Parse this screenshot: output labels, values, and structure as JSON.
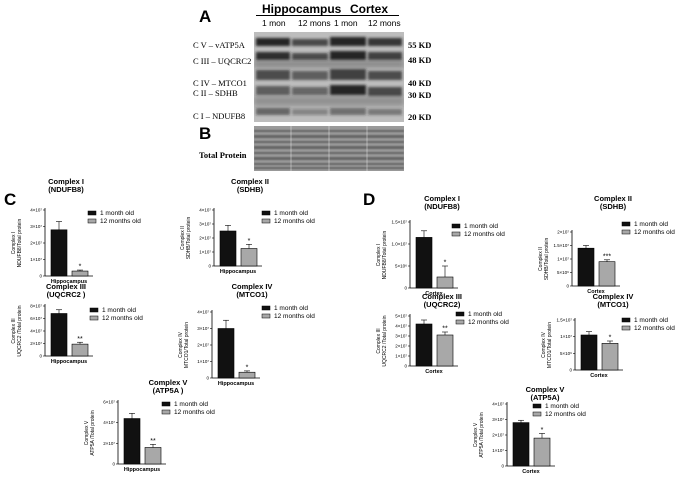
{
  "panels": {
    "A": "A",
    "B": "B",
    "C": "C",
    "D": "D"
  },
  "blot": {
    "groups": [
      "Hippocampus",
      "Cortex"
    ],
    "ages": [
      "1 mon",
      "12 mons",
      "1 mon",
      "12 mons"
    ],
    "bands": [
      {
        "label": "C V – vATP5A",
        "kd": "55 KD"
      },
      {
        "label": "C III – UQCRC2",
        "kd": "48 KD"
      },
      {
        "label": "C IV – MTCO1",
        "kd": "40 KD"
      },
      {
        "label": "C II – SDHB",
        "kd": "30 KD"
      },
      {
        "label": "C I – NDUFB8",
        "kd": "20 KD"
      }
    ],
    "total_protein_label": "Total Protein"
  },
  "legend": {
    "a": "1 month old",
    "b": "12 months old"
  },
  "colors": {
    "bar_1mon": "#111111",
    "bar_12mon": "#a8a8a8"
  },
  "chart_data": [
    {
      "type": "bar",
      "id": "c1",
      "title": [
        "Complex I",
        "(NDUFB8)"
      ],
      "ylabel": [
        "Complex I",
        "NDUFB8/Total protein"
      ],
      "xlabel": "Hippocampus",
      "ylim": [
        0,
        40000000
      ],
      "ticks": [
        "0",
        "1×10⁷",
        "2×10⁷",
        "3×10⁷",
        "4×10⁷"
      ],
      "tick_values": [
        0,
        10000000,
        20000000,
        30000000,
        40000000
      ],
      "series": [
        {
          "name": "1 month old",
          "value": 28000000,
          "err": 5000000
        },
        {
          "name": "12 months old",
          "value": 3000000,
          "err": 600000
        }
      ],
      "sig": "*"
    },
    {
      "type": "bar",
      "id": "c2",
      "title": [
        "Complex II",
        "(SDHB)"
      ],
      "ylabel": [
        "Complex II",
        "SDHB/Total protein"
      ],
      "xlabel": "Hippocampus",
      "ylim": [
        0,
        40000000
      ],
      "ticks": [
        "0",
        "1×10⁷",
        "2×10⁷",
        "3×10⁷",
        "4×10⁷"
      ],
      "tick_values": [
        0,
        10000000,
        20000000,
        30000000,
        40000000
      ],
      "series": [
        {
          "name": "1 month old",
          "value": 25000000,
          "err": 4000000
        },
        {
          "name": "12 months old",
          "value": 12500000,
          "err": 3000000
        }
      ],
      "sig": "*"
    },
    {
      "type": "bar",
      "id": "c3",
      "title": [
        "Complex III",
        "(UQCRC2 )"
      ],
      "ylabel": [
        "Complex III",
        "UQCRC2 /Total protein"
      ],
      "xlabel": "Hippocampus",
      "ylim": [
        0,
        80000000
      ],
      "ticks": [
        "0",
        "2×10⁷",
        "4×10⁷",
        "6×10⁷",
        "8×10⁷"
      ],
      "tick_values": [
        0,
        20000000,
        40000000,
        60000000,
        80000000
      ],
      "series": [
        {
          "name": "1 month old",
          "value": 68000000,
          "err": 6000000
        },
        {
          "name": "12 months old",
          "value": 19000000,
          "err": 3000000
        }
      ],
      "sig": "**"
    },
    {
      "type": "bar",
      "id": "c4",
      "title": [
        "Complex IV",
        "(MTCO1)"
      ],
      "ylabel": [
        "Complex IV",
        "MTCO1/Total protein"
      ],
      "xlabel": "Hippocampus",
      "ylim": [
        0,
        40000000
      ],
      "ticks": [
        "0",
        "1×10⁷",
        "2×10⁷",
        "3×10⁷",
        "4×10⁷"
      ],
      "tick_values": [
        0,
        10000000,
        20000000,
        30000000,
        40000000
      ],
      "series": [
        {
          "name": "1 month old",
          "value": 30000000,
          "err": 5000000
        },
        {
          "name": "12 months old",
          "value": 3500000,
          "err": 800000
        }
      ],
      "sig": "*"
    },
    {
      "type": "bar",
      "id": "c5",
      "title": [
        "Complex V",
        "(ATP5A )"
      ],
      "ylabel": [
        "Complex V",
        "ATP5A /Total protein"
      ],
      "xlabel": "Hippocampus",
      "ylim": [
        0,
        60000000
      ],
      "ticks": [
        "0",
        "2×10⁷",
        "4×10⁷",
        "6×10⁷"
      ],
      "tick_values": [
        0,
        20000000,
        40000000,
        60000000
      ],
      "series": [
        {
          "name": "1 month old",
          "value": 44000000,
          "err": 5000000
        },
        {
          "name": "12 months old",
          "value": 16000000,
          "err": 3000000
        }
      ],
      "sig": "**"
    },
    {
      "type": "bar",
      "id": "d1",
      "title": [
        "Complex I",
        "(NDUFB8)"
      ],
      "ylabel": [
        "Complex I",
        "NDUFB8/Total protein"
      ],
      "xlabel": "Cortex",
      "ylim": [
        0,
        15000000
      ],
      "ticks": [
        "0",
        "5×10⁶",
        "1.0×10⁷",
        "1.5×10⁷"
      ],
      "tick_values": [
        0,
        5000000,
        10000000,
        15000000
      ],
      "series": [
        {
          "name": "1 month old",
          "value": 11500000,
          "err": 1500000
        },
        {
          "name": "12 months old",
          "value": 2500000,
          "err": 2500000
        }
      ],
      "sig": "*"
    },
    {
      "type": "bar",
      "id": "d2",
      "title": [
        "Complex II",
        "(SDHB)"
      ],
      "ylabel": [
        "Complex II",
        "SDHB/Total protein"
      ],
      "xlabel": "Cortex",
      "ylim": [
        0,
        20000000
      ],
      "ticks": [
        "0",
        "5×10⁶",
        "1×10⁷",
        "1.5×10⁷",
        "2×10⁷"
      ],
      "tick_values": [
        0,
        5000000,
        10000000,
        15000000,
        20000000
      ],
      "series": [
        {
          "name": "1 month old",
          "value": 14000000,
          "err": 1000000
        },
        {
          "name": "12 months old",
          "value": 9000000,
          "err": 700000
        }
      ],
      "sig": "***"
    },
    {
      "type": "bar",
      "id": "d3",
      "title": [
        "Complex III",
        "(UQCRC2)"
      ],
      "ylabel": [
        "Complex III",
        "UQCRC2 /Total protein"
      ],
      "xlabel": "Cortex",
      "ylim": [
        0,
        50000000
      ],
      "ticks": [
        "0",
        "1×10⁷",
        "2×10⁷",
        "3×10⁷",
        "4×10⁷",
        "5×10⁷"
      ],
      "tick_values": [
        0,
        10000000,
        20000000,
        30000000,
        40000000,
        50000000
      ],
      "series": [
        {
          "name": "1 month old",
          "value": 42000000,
          "err": 4000000
        },
        {
          "name": "12 months old",
          "value": 31000000,
          "err": 3000000
        }
      ],
      "sig": "**"
    },
    {
      "type": "bar",
      "id": "d4",
      "title": [
        "Complex IV",
        "(MTCO1)"
      ],
      "ylabel": [
        "Complex IV",
        "MTCO1/Total protein"
      ],
      "xlabel": "Cortex",
      "ylim": [
        0,
        15000000
      ],
      "ticks": [
        "0",
        "5×10⁶",
        "1×10⁷",
        "1.5×10⁷"
      ],
      "tick_values": [
        0,
        5000000,
        10000000,
        15000000
      ],
      "series": [
        {
          "name": "1 month old",
          "value": 10500000,
          "err": 1000000
        },
        {
          "name": "12 months old",
          "value": 8000000,
          "err": 700000
        }
      ],
      "sig": "*"
    },
    {
      "type": "bar",
      "id": "d5",
      "title": [
        "Complex V",
        "(ATP5A)"
      ],
      "ylabel": [
        "Complex V",
        "ATP5A /Total protein"
      ],
      "xlabel": "Cortex",
      "ylim": [
        0,
        40000000
      ],
      "ticks": [
        "0",
        "1×10⁷",
        "2×10⁷",
        "3×10⁷",
        "4×10⁷"
      ],
      "tick_values": [
        0,
        10000000,
        20000000,
        30000000,
        40000000
      ],
      "series": [
        {
          "name": "1 month old",
          "value": 28000000,
          "err": 1500000
        },
        {
          "name": "12 months old",
          "value": 18000000,
          "err": 3000000
        }
      ],
      "sig": "*"
    }
  ]
}
